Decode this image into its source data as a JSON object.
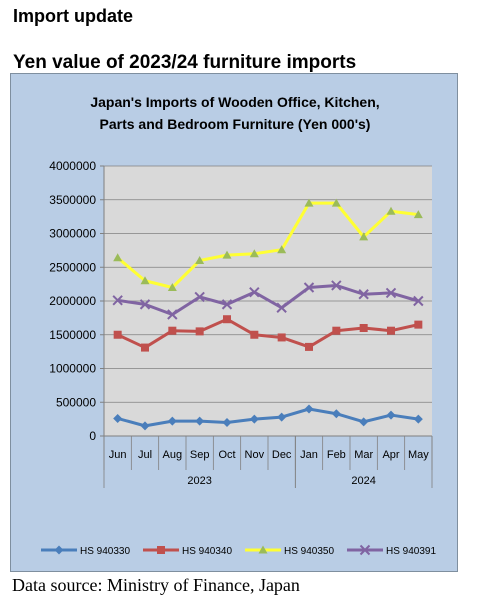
{
  "page": {
    "heading": "Import update",
    "subheading": "Yen value of 2023/24 furniture imports",
    "source": "Data source: Ministry of Finance, Japan"
  },
  "chart_data": {
    "type": "line",
    "title_lines": [
      "Japan's Imports of  Wooden  Office, Kitchen,",
      "Parts and Bedroom Furniture (Yen 000's)"
    ],
    "categories": [
      "Jun",
      "Jul",
      "Aug",
      "Sep",
      "Oct",
      "Nov",
      "Dec",
      "Jan",
      "Feb",
      "Mar",
      "Apr",
      "May"
    ],
    "year_groups": [
      {
        "label": "2023",
        "start": 0,
        "end": 6
      },
      {
        "label": "2024",
        "start": 7,
        "end": 11
      }
    ],
    "ylim": [
      0,
      4000000
    ],
    "yticks": [
      0,
      500000,
      1000000,
      1500000,
      2000000,
      2500000,
      3000000,
      3500000,
      4000000
    ],
    "plot_background": "#d9d9d9",
    "chart_background": "#b9cde5",
    "grid": true,
    "legend_position": "bottom",
    "series": [
      {
        "name": "HS 940330",
        "color": "#4a7ebb",
        "marker": "diamond",
        "values": [
          260000,
          150000,
          220000,
          220000,
          200000,
          250000,
          280000,
          400000,
          330000,
          210000,
          310000,
          250000
        ]
      },
      {
        "name": "HS 940340",
        "color": "#c0504d",
        "marker": "square",
        "values": [
          1500000,
          1310000,
          1560000,
          1550000,
          1730000,
          1500000,
          1460000,
          1320000,
          1560000,
          1600000,
          1560000,
          1650000
        ]
      },
      {
        "name": "HS 940350",
        "color": "#ffff33",
        "markerColor": "#9bbb59",
        "marker": "triangle",
        "values": [
          2640000,
          2300000,
          2200000,
          2600000,
          2680000,
          2700000,
          2760000,
          3450000,
          3450000,
          2950000,
          3330000,
          3280000
        ]
      },
      {
        "name": "HS 940391",
        "color": "#8064a2",
        "marker": "x",
        "values": [
          2010000,
          1950000,
          1800000,
          2060000,
          1950000,
          2130000,
          1900000,
          2200000,
          2230000,
          2100000,
          2120000,
          2000000
        ]
      }
    ]
  }
}
